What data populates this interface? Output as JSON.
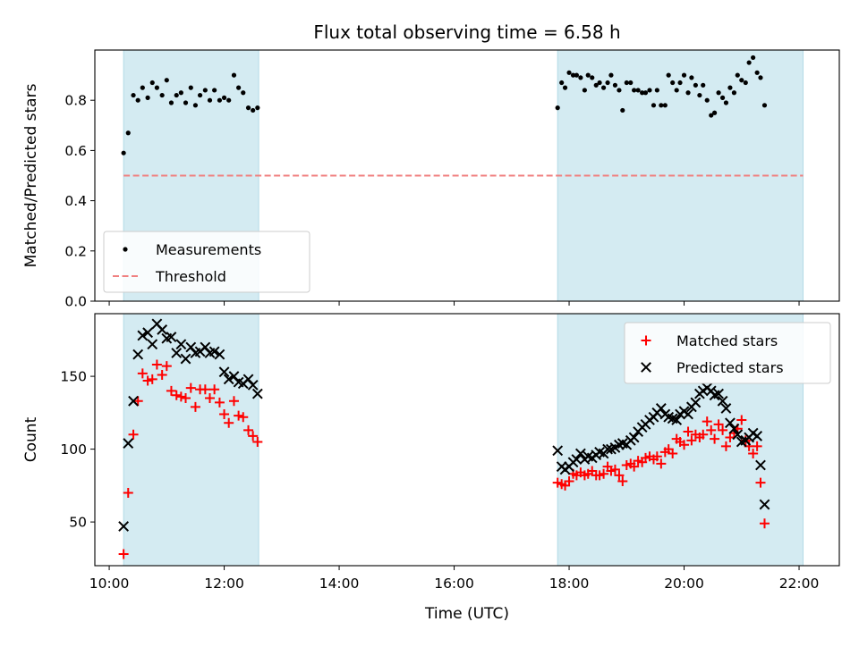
{
  "title": "Flux total observing time = 6.58 h",
  "colors": {
    "span": "#add8e6",
    "measurement": "#000000",
    "threshold": "#f08080",
    "matched": "#ff0000",
    "predicted": "#000000"
  },
  "chart_data": [
    {
      "type": "scatter",
      "ylabel": "Matched/Predicted stars",
      "ylim": [
        0,
        1.0
      ],
      "yticks": [
        0.0,
        0.2,
        0.4,
        0.6,
        0.8
      ],
      "ytick_labels": [
        "0.0",
        "0.2",
        "0.4",
        "0.6",
        "0.8"
      ],
      "xlim": [
        9.75,
        22.7
      ],
      "legend_position": "lower-left",
      "shaded_spans": [
        [
          10.25,
          12.6
        ],
        [
          17.8,
          22.07
        ]
      ],
      "series": [
        {
          "name": "Measurements",
          "marker": "dot",
          "points": [
            [
              10.25,
              0.59
            ],
            [
              10.33,
              0.67
            ],
            [
              10.42,
              0.82
            ],
            [
              10.5,
              0.8
            ],
            [
              10.58,
              0.85
            ],
            [
              10.67,
              0.81
            ],
            [
              10.75,
              0.87
            ],
            [
              10.83,
              0.85
            ],
            [
              10.92,
              0.82
            ],
            [
              11.0,
              0.88
            ],
            [
              11.08,
              0.79
            ],
            [
              11.17,
              0.82
            ],
            [
              11.25,
              0.83
            ],
            [
              11.33,
              0.79
            ],
            [
              11.42,
              0.85
            ],
            [
              11.5,
              0.78
            ],
            [
              11.58,
              0.82
            ],
            [
              11.67,
              0.84
            ],
            [
              11.75,
              0.8
            ],
            [
              11.83,
              0.84
            ],
            [
              11.92,
              0.8
            ],
            [
              12.0,
              0.81
            ],
            [
              12.08,
              0.8
            ],
            [
              12.17,
              0.9
            ],
            [
              12.25,
              0.85
            ],
            [
              12.33,
              0.83
            ],
            [
              12.42,
              0.77
            ],
            [
              12.5,
              0.76
            ],
            [
              12.58,
              0.77
            ],
            [
              17.8,
              0.77
            ],
            [
              17.87,
              0.87
            ],
            [
              17.93,
              0.85
            ],
            [
              18.0,
              0.91
            ],
            [
              18.07,
              0.9
            ],
            [
              18.13,
              0.9
            ],
            [
              18.2,
              0.89
            ],
            [
              18.27,
              0.84
            ],
            [
              18.33,
              0.9
            ],
            [
              18.4,
              0.89
            ],
            [
              18.47,
              0.86
            ],
            [
              18.53,
              0.87
            ],
            [
              18.6,
              0.85
            ],
            [
              18.67,
              0.87
            ],
            [
              18.73,
              0.9
            ],
            [
              18.8,
              0.86
            ],
            [
              18.87,
              0.84
            ],
            [
              18.93,
              0.76
            ],
            [
              19.0,
              0.87
            ],
            [
              19.07,
              0.87
            ],
            [
              19.13,
              0.84
            ],
            [
              19.2,
              0.84
            ],
            [
              19.27,
              0.83
            ],
            [
              19.33,
              0.83
            ],
            [
              19.4,
              0.84
            ],
            [
              19.47,
              0.78
            ],
            [
              19.53,
              0.84
            ],
            [
              19.6,
              0.78
            ],
            [
              19.67,
              0.78
            ],
            [
              19.73,
              0.9
            ],
            [
              19.8,
              0.87
            ],
            [
              19.87,
              0.84
            ],
            [
              19.93,
              0.87
            ],
            [
              20.0,
              0.9
            ],
            [
              20.07,
              0.83
            ],
            [
              20.13,
              0.89
            ],
            [
              20.2,
              0.86
            ],
            [
              20.27,
              0.82
            ],
            [
              20.33,
              0.86
            ],
            [
              20.4,
              0.8
            ],
            [
              20.47,
              0.74
            ],
            [
              20.53,
              0.75
            ],
            [
              20.6,
              0.83
            ],
            [
              20.67,
              0.81
            ],
            [
              20.73,
              0.79
            ],
            [
              20.8,
              0.85
            ],
            [
              20.87,
              0.83
            ],
            [
              20.93,
              0.9
            ],
            [
              21.0,
              0.88
            ],
            [
              21.07,
              0.87
            ],
            [
              21.13,
              0.95
            ],
            [
              21.2,
              0.97
            ],
            [
              21.27,
              0.91
            ],
            [
              21.33,
              0.89
            ],
            [
              21.4,
              0.78
            ]
          ]
        },
        {
          "name": "Threshold",
          "marker": "dashed-line",
          "points": [
            [
              10.25,
              0.5
            ],
            [
              22.07,
              0.5
            ]
          ]
        }
      ]
    },
    {
      "type": "scatter",
      "ylabel": "Count",
      "xlabel": "Time (UTC)",
      "ylim": [
        20,
        193
      ],
      "yticks": [
        50,
        100,
        150
      ],
      "ytick_labels": [
        "50",
        "100",
        "150"
      ],
      "xlim": [
        9.75,
        22.7
      ],
      "xticks": [
        10,
        12,
        14,
        16,
        18,
        20,
        22
      ],
      "xtick_labels": [
        "10:00",
        "12:00",
        "14:00",
        "16:00",
        "18:00",
        "20:00",
        "22:00"
      ],
      "legend_position": "upper-right",
      "shaded_spans": [
        [
          10.25,
          12.6
        ],
        [
          17.8,
          22.07
        ]
      ],
      "series": [
        {
          "name": "Matched stars",
          "marker": "plus",
          "points": [
            [
              10.25,
              28
            ],
            [
              10.33,
              70
            ],
            [
              10.42,
              110
            ],
            [
              10.5,
              133
            ],
            [
              10.58,
              152
            ],
            [
              10.67,
              147
            ],
            [
              10.75,
              148
            ],
            [
              10.83,
              158
            ],
            [
              10.92,
              151
            ],
            [
              11.0,
              157
            ],
            [
              11.08,
              140
            ],
            [
              11.17,
              137
            ],
            [
              11.25,
              136
            ],
            [
              11.33,
              135
            ],
            [
              11.42,
              142
            ],
            [
              11.5,
              129
            ],
            [
              11.58,
              141
            ],
            [
              11.67,
              141
            ],
            [
              11.75,
              135
            ],
            [
              11.83,
              141
            ],
            [
              11.92,
              132
            ],
            [
              12.0,
              124
            ],
            [
              12.08,
              118
            ],
            [
              12.17,
              133
            ],
            [
              12.25,
              123
            ],
            [
              12.33,
              122
            ],
            [
              12.42,
              113
            ],
            [
              12.5,
              109
            ],
            [
              12.58,
              105
            ],
            [
              17.8,
              77
            ],
            [
              17.87,
              76
            ],
            [
              17.93,
              75
            ],
            [
              18.0,
              78
            ],
            [
              18.07,
              83
            ],
            [
              18.13,
              82
            ],
            [
              18.2,
              84
            ],
            [
              18.27,
              82
            ],
            [
              18.33,
              83
            ],
            [
              18.4,
              85
            ],
            [
              18.47,
              82
            ],
            [
              18.53,
              82
            ],
            [
              18.6,
              83
            ],
            [
              18.67,
              88
            ],
            [
              18.73,
              85
            ],
            [
              18.8,
              86
            ],
            [
              18.87,
              82
            ],
            [
              18.93,
              78
            ],
            [
              19.0,
              89
            ],
            [
              19.07,
              90
            ],
            [
              19.13,
              88
            ],
            [
              19.2,
              92
            ],
            [
              19.27,
              91
            ],
            [
              19.33,
              94
            ],
            [
              19.4,
              95
            ],
            [
              19.47,
              93
            ],
            [
              19.53,
              95
            ],
            [
              19.6,
              90
            ],
            [
              19.67,
              98
            ],
            [
              19.73,
              100
            ],
            [
              19.8,
              97
            ],
            [
              19.87,
              107
            ],
            [
              19.93,
              105
            ],
            [
              20.0,
              103
            ],
            [
              20.07,
              112
            ],
            [
              20.13,
              106
            ],
            [
              20.2,
              110
            ],
            [
              20.27,
              108
            ],
            [
              20.33,
              110
            ],
            [
              20.4,
              119
            ],
            [
              20.47,
              113
            ],
            [
              20.53,
              107
            ],
            [
              20.6,
              117
            ],
            [
              20.67,
              113
            ],
            [
              20.73,
              102
            ],
            [
              20.8,
              108
            ],
            [
              20.87,
              111
            ],
            [
              20.93,
              114
            ],
            [
              21.0,
              120
            ],
            [
              21.07,
              106
            ],
            [
              21.13,
              102
            ],
            [
              21.2,
              97
            ],
            [
              21.27,
              102
            ],
            [
              21.33,
              77
            ],
            [
              21.4,
              49
            ]
          ]
        },
        {
          "name": "Predicted stars",
          "marker": "x",
          "points": [
            [
              10.25,
              47
            ],
            [
              10.33,
              104
            ],
            [
              10.42,
              133
            ],
            [
              10.5,
              165
            ],
            [
              10.58,
              178
            ],
            [
              10.67,
              180
            ],
            [
              10.75,
              172
            ],
            [
              10.83,
              186
            ],
            [
              10.92,
              182
            ],
            [
              11.0,
              176
            ],
            [
              11.08,
              177
            ],
            [
              11.17,
              166
            ],
            [
              11.25,
              172
            ],
            [
              11.33,
              162
            ],
            [
              11.42,
              170
            ],
            [
              11.5,
              166
            ],
            [
              11.58,
              167
            ],
            [
              11.67,
              170
            ],
            [
              11.75,
              166
            ],
            [
              11.83,
              167
            ],
            [
              11.92,
              165
            ],
            [
              12.0,
              153
            ],
            [
              12.08,
              148
            ],
            [
              12.17,
              150
            ],
            [
              12.25,
              146
            ],
            [
              12.33,
              145
            ],
            [
              12.42,
              148
            ],
            [
              12.5,
              144
            ],
            [
              12.58,
              138
            ],
            [
              17.8,
              99
            ],
            [
              17.87,
              88
            ],
            [
              17.93,
              86
            ],
            [
              18.0,
              88
            ],
            [
              18.07,
              91
            ],
            [
              18.13,
              93
            ],
            [
              18.2,
              97
            ],
            [
              18.27,
              93
            ],
            [
              18.33,
              95
            ],
            [
              18.4,
              94
            ],
            [
              18.47,
              96
            ],
            [
              18.53,
              98
            ],
            [
              18.6,
              97
            ],
            [
              18.67,
              100
            ],
            [
              18.73,
              100
            ],
            [
              18.8,
              101
            ],
            [
              18.87,
              103
            ],
            [
              18.93,
              104
            ],
            [
              19.0,
              103
            ],
            [
              19.07,
              106
            ],
            [
              19.13,
              108
            ],
            [
              19.2,
              112
            ],
            [
              19.27,
              115
            ],
            [
              19.33,
              117
            ],
            [
              19.4,
              120
            ],
            [
              19.47,
              122
            ],
            [
              19.53,
              125
            ],
            [
              19.6,
              128
            ],
            [
              19.67,
              124
            ],
            [
              19.73,
              122
            ],
            [
              19.8,
              121
            ],
            [
              19.87,
              120
            ],
            [
              19.93,
              124
            ],
            [
              20.0,
              126
            ],
            [
              20.07,
              124
            ],
            [
              20.13,
              129
            ],
            [
              20.2,
              132
            ],
            [
              20.27,
              138
            ],
            [
              20.33,
              140
            ],
            [
              20.4,
              142
            ],
            [
              20.47,
              140
            ],
            [
              20.53,
              137
            ],
            [
              20.6,
              138
            ],
            [
              20.67,
              133
            ],
            [
              20.73,
              128
            ],
            [
              20.8,
              118
            ],
            [
              20.87,
              114
            ],
            [
              20.93,
              110
            ],
            [
              21.0,
              105
            ],
            [
              21.07,
              106
            ],
            [
              21.13,
              108
            ],
            [
              21.2,
              111
            ],
            [
              21.27,
              109
            ],
            [
              21.33,
              89
            ],
            [
              21.4,
              62
            ]
          ]
        }
      ]
    }
  ]
}
